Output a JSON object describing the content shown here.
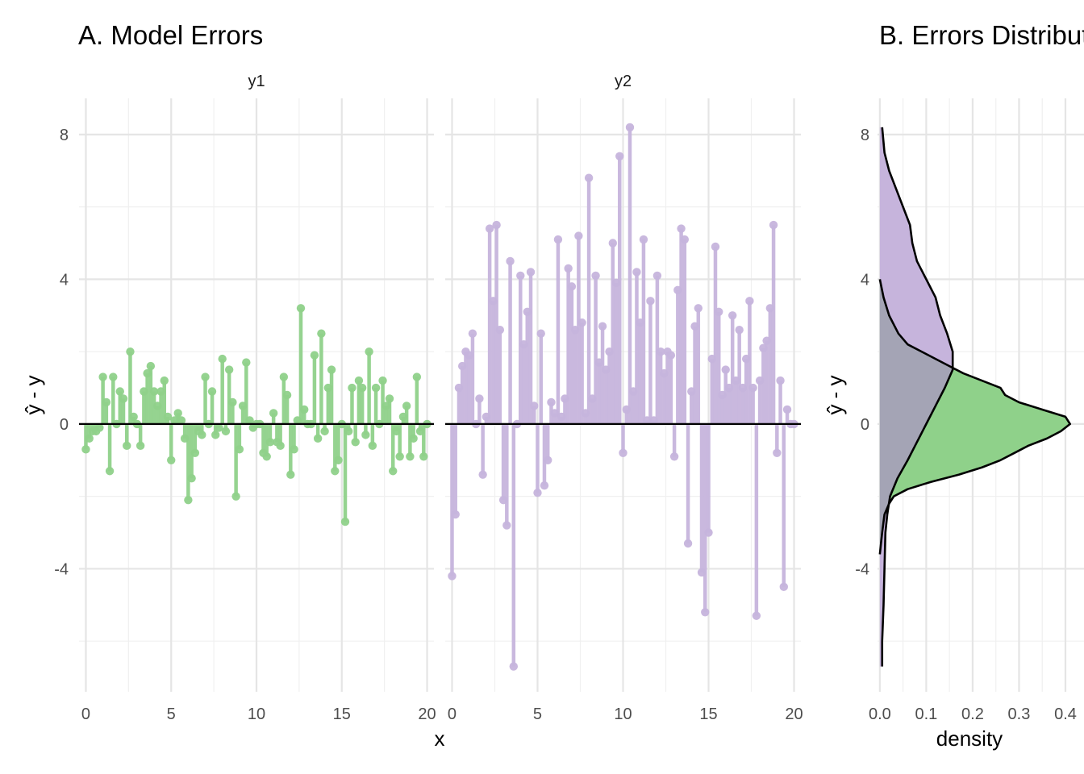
{
  "chart_data": [
    {
      "type": "lollipop",
      "title": "A. Model Errors",
      "xlabel": "x",
      "ylabel": "ŷ - y",
      "ylim": [
        -7.4,
        9.0
      ],
      "yticks": [
        -4,
        0,
        4,
        8
      ],
      "xticks": [
        0,
        5,
        10,
        15,
        20
      ],
      "facets": [
        {
          "name": "y1",
          "color": "#8fd18a",
          "xlim": [
            -0.4,
            20.4
          ],
          "x": [
            0,
            0.2,
            0.4,
            0.6,
            0.8,
            1.0,
            1.2,
            1.4,
            1.6,
            1.8,
            2.0,
            2.2,
            2.4,
            2.6,
            2.8,
            3.0,
            3.2,
            3.4,
            3.6,
            3.8,
            4.0,
            4.2,
            4.4,
            4.6,
            4.8,
            5.0,
            5.2,
            5.4,
            5.6,
            5.8,
            6.0,
            6.2,
            6.4,
            6.6,
            6.8,
            7.0,
            7.2,
            7.4,
            7.6,
            7.8,
            8.0,
            8.2,
            8.4,
            8.6,
            8.8,
            9.0,
            9.2,
            9.4,
            9.6,
            9.8,
            10.0,
            10.2,
            10.4,
            10.6,
            10.8,
            11.0,
            11.2,
            11.4,
            11.6,
            11.8,
            12.0,
            12.2,
            12.4,
            12.6,
            12.8,
            13.0,
            13.2,
            13.4,
            13.6,
            13.8,
            14.0,
            14.2,
            14.4,
            14.6,
            14.8,
            15.0,
            15.2,
            15.4,
            15.6,
            15.8,
            16.0,
            16.2,
            16.4,
            16.6,
            16.8,
            17.0,
            17.2,
            17.4,
            17.6,
            17.8,
            18.0,
            18.2,
            18.4,
            18.6,
            18.8,
            19.0,
            19.2,
            19.4,
            19.6,
            19.8,
            20.0
          ],
          "values": [
            -0.7,
            -0.4,
            -0.2,
            -0.2,
            -0.1,
            1.3,
            0.6,
            -1.3,
            1.3,
            0.0,
            0.9,
            0.7,
            -0.6,
            2.0,
            0.2,
            0.0,
            -0.6,
            0.9,
            1.4,
            1.6,
            0.9,
            0.5,
            0.9,
            1.2,
            0.2,
            -1.0,
            0.1,
            0.3,
            0.1,
            -0.4,
            -2.1,
            -1.5,
            -0.8,
            -0.2,
            -0.3,
            1.3,
            0.0,
            0.9,
            -0.3,
            -0.1,
            1.8,
            -0.2,
            1.5,
            0.6,
            -2.0,
            -0.7,
            0.5,
            1.7,
            0.1,
            -0.1,
            0.0,
            0.0,
            -0.8,
            -0.9,
            -0.5,
            0.3,
            -0.5,
            -0.6,
            1.3,
            0.8,
            -1.4,
            -0.7,
            0.1,
            3.2,
            0.4,
            0.0,
            0.0,
            1.9,
            -0.4,
            2.5,
            -0.2,
            1.0,
            1.5,
            -1.3,
            -1.0,
            0.0,
            -2.7,
            -0.2,
            1.0,
            -0.5,
            1.2,
            1.0,
            -0.3,
            2.0,
            -0.6,
            1.0,
            0.0,
            1.2,
            0.5,
            0.7,
            -1.3,
            -0.2,
            -0.9,
            0.2,
            0.5,
            -0.9,
            -0.4,
            1.3,
            -0.2,
            -0.9,
            0.0
          ]
        },
        {
          "name": "y2",
          "color": "#c6b4dc",
          "xlim": [
            -0.4,
            20.4
          ],
          "x": [
            0,
            0.2,
            0.4,
            0.6,
            0.8,
            1.0,
            1.2,
            1.4,
            1.6,
            1.8,
            2.0,
            2.2,
            2.4,
            2.6,
            2.8,
            3.0,
            3.2,
            3.4,
            3.6,
            3.8,
            4.0,
            4.2,
            4.4,
            4.6,
            4.8,
            5.0,
            5.2,
            5.4,
            5.6,
            5.8,
            6.0,
            6.2,
            6.4,
            6.6,
            6.8,
            7.0,
            7.2,
            7.4,
            7.6,
            7.8,
            8.0,
            8.2,
            8.4,
            8.6,
            8.8,
            9.0,
            9.2,
            9.4,
            9.6,
            9.8,
            10.0,
            10.2,
            10.4,
            10.6,
            10.8,
            11.0,
            11.2,
            11.4,
            11.6,
            11.8,
            12.0,
            12.2,
            12.4,
            12.6,
            12.8,
            13.0,
            13.2,
            13.4,
            13.6,
            13.8,
            14.0,
            14.2,
            14.4,
            14.6,
            14.8,
            15.0,
            15.2,
            15.4,
            15.6,
            15.8,
            16.0,
            16.2,
            16.4,
            16.6,
            16.8,
            17.0,
            17.2,
            17.4,
            17.6,
            17.8,
            18.0,
            18.2,
            18.4,
            18.6,
            18.8,
            19.0,
            19.2,
            19.4,
            19.6,
            19.8,
            20.0
          ],
          "values": [
            -4.2,
            -2.5,
            1.0,
            1.6,
            2.0,
            1.9,
            2.5,
            0.0,
            0.7,
            -1.4,
            0.2,
            5.4,
            3.4,
            5.5,
            2.6,
            -2.1,
            -2.8,
            4.5,
            -6.7,
            0.0,
            4.1,
            2.2,
            3.1,
            4.2,
            0.5,
            -1.9,
            2.5,
            -1.7,
            -1.0,
            0.6,
            0.3,
            5.1,
            0.2,
            0.7,
            4.3,
            3.8,
            2.6,
            5.2,
            2.8,
            0.3,
            6.8,
            0.7,
            4.1,
            1.7,
            2.7,
            1.5,
            2.0,
            5.0,
            3.9,
            7.4,
            -0.8,
            0.4,
            8.2,
            0.9,
            4.2,
            2.8,
            5.1,
            0.1,
            3.4,
            0.1,
            4.1,
            2.0,
            1.4,
            2.0,
            1.9,
            -0.9,
            3.7,
            5.4,
            5.1,
            -3.3,
            0.9,
            2.7,
            3.2,
            -4.1,
            -5.2,
            -3.0,
            1.8,
            4.9,
            3.1,
            0.8,
            1.5,
            1.0,
            3.0,
            1.2,
            2.6,
            1.0,
            1.8,
            3.4,
            1.0,
            -5.3,
            1.2,
            2.1,
            2.3,
            3.2,
            5.5,
            -0.8,
            1.2,
            -4.5,
            0.4,
            0.0,
            0.0
          ]
        }
      ]
    },
    {
      "type": "area",
      "title": "B. Errors Distribution",
      "xlabel": "density",
      "ylabel": "ŷ - y",
      "xlim": [
        -0.005,
        0.44
      ],
      "ylim": [
        -7.4,
        9.0
      ],
      "xticks": [
        "0.0",
        "0.1",
        "0.2",
        "0.3",
        "0.4"
      ],
      "yticks": [
        -4,
        0,
        4,
        8
      ],
      "overlap_color": "#a4a4b5",
      "series": [
        {
          "name": "y1",
          "color": "#8fd18a",
          "y": [
            -3.6,
            -3.0,
            -2.5,
            -2.2,
            -2.0,
            -1.8,
            -1.6,
            -1.4,
            -1.2,
            -1.0,
            -0.8,
            -0.6,
            -0.4,
            -0.2,
            0.0,
            0.2,
            0.4,
            0.6,
            0.8,
            1.0,
            1.2,
            1.4,
            1.6,
            1.8,
            2.0,
            2.2,
            2.5,
            3.0,
            3.5,
            4.0
          ],
          "density": [
            0.0,
            0.005,
            0.01,
            0.02,
            0.03,
            0.06,
            0.11,
            0.17,
            0.22,
            0.26,
            0.29,
            0.32,
            0.36,
            0.39,
            0.41,
            0.4,
            0.35,
            0.3,
            0.27,
            0.26,
            0.22,
            0.18,
            0.15,
            0.12,
            0.09,
            0.06,
            0.04,
            0.02,
            0.008,
            0.0
          ]
        },
        {
          "name": "y2",
          "color": "#c6b4dc",
          "y": [
            -6.7,
            -6.0,
            -5.0,
            -4.0,
            -3.0,
            -2.5,
            -2.0,
            -1.5,
            -1.0,
            -0.5,
            0.0,
            0.5,
            1.0,
            1.5,
            2.0,
            2.5,
            3.0,
            3.5,
            4.0,
            4.5,
            5.0,
            5.5,
            6.0,
            6.5,
            7.0,
            7.5,
            8.2
          ],
          "density": [
            0.005,
            0.005,
            0.008,
            0.01,
            0.012,
            0.016,
            0.022,
            0.038,
            0.06,
            0.08,
            0.1,
            0.12,
            0.14,
            0.157,
            0.157,
            0.145,
            0.13,
            0.12,
            0.1,
            0.08,
            0.07,
            0.065,
            0.05,
            0.035,
            0.02,
            0.01,
            0.005
          ]
        }
      ]
    }
  ]
}
